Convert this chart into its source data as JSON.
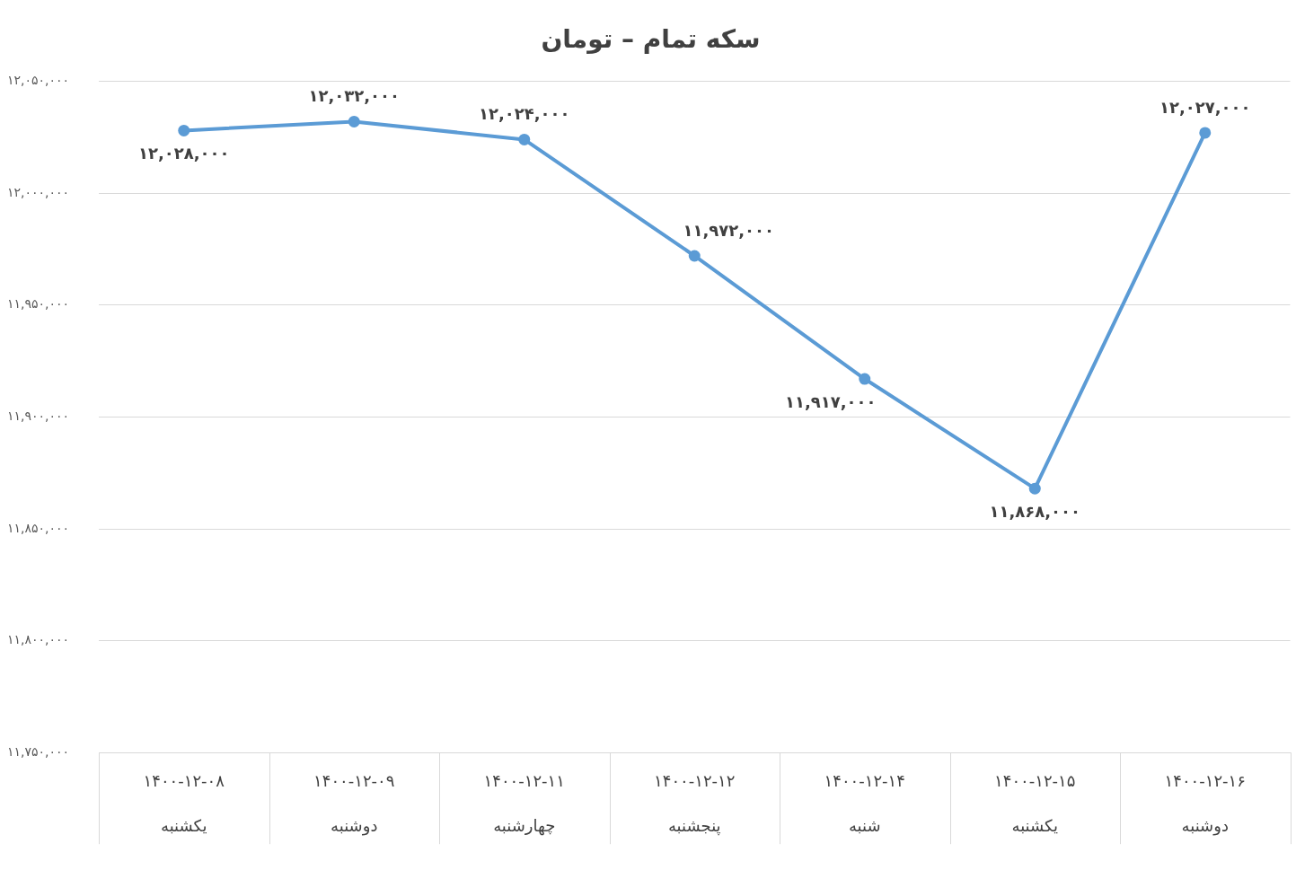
{
  "chart_data": {
    "type": "line",
    "title": "سکه تمام – تومان",
    "categories": [
      "۱۴۰۰-۱۲-۰۸\nیکشنبه",
      "۱۴۰۰-۱۲-۰۹\nدوشنبه",
      "۱۴۰۰-۱۲-۱۱\nچهارشنبه",
      "۱۴۰۰-۱۲-۱۲\nپنجشنبه",
      "۱۴۰۰-۱۲-۱۴\nشنبه",
      "۱۴۰۰-۱۲-۱۵\nیکشنبه",
      "۱۴۰۰-۱۲-۱۶\nدوشنبه"
    ],
    "series": [
      {
        "color": "#5b9bd5",
        "values": [
          12028000,
          12032000,
          12024000,
          11972000,
          11917000,
          11868000,
          12027000
        ],
        "value_labels": [
          "۱۲,۰۲۸,۰۰۰",
          "۱۲,۰۳۲,۰۰۰",
          "۱۲,۰۲۴,۰۰۰",
          "۱۱,۹۷۲,۰۰۰",
          "۱۱,۹۱۷,۰۰۰",
          "۱۱,۸۶۸,۰۰۰",
          "۱۲,۰۲۷,۰۰۰"
        ]
      }
    ],
    "ylim": [
      11750000,
      12050000
    ],
    "yticks": [
      {
        "value": 11750000,
        "label": "۱۱,۷۵۰,۰۰۰"
      },
      {
        "value": 11800000,
        "label": "۱۱,۸۰۰,۰۰۰"
      },
      {
        "value": 11850000,
        "label": "۱۱,۸۵۰,۰۰۰"
      },
      {
        "value": 11900000,
        "label": "۱۱,۹۰۰,۰۰۰"
      },
      {
        "value": 11950000,
        "label": "۱۱,۹۵۰,۰۰۰"
      },
      {
        "value": 12000000,
        "label": "۱۲,۰۰۰,۰۰۰"
      },
      {
        "value": 12050000,
        "label": "۱۲,۰۵۰,۰۰۰"
      }
    ],
    "grid": "y",
    "legend": false,
    "marker": "circle",
    "line_style": "solid"
  }
}
